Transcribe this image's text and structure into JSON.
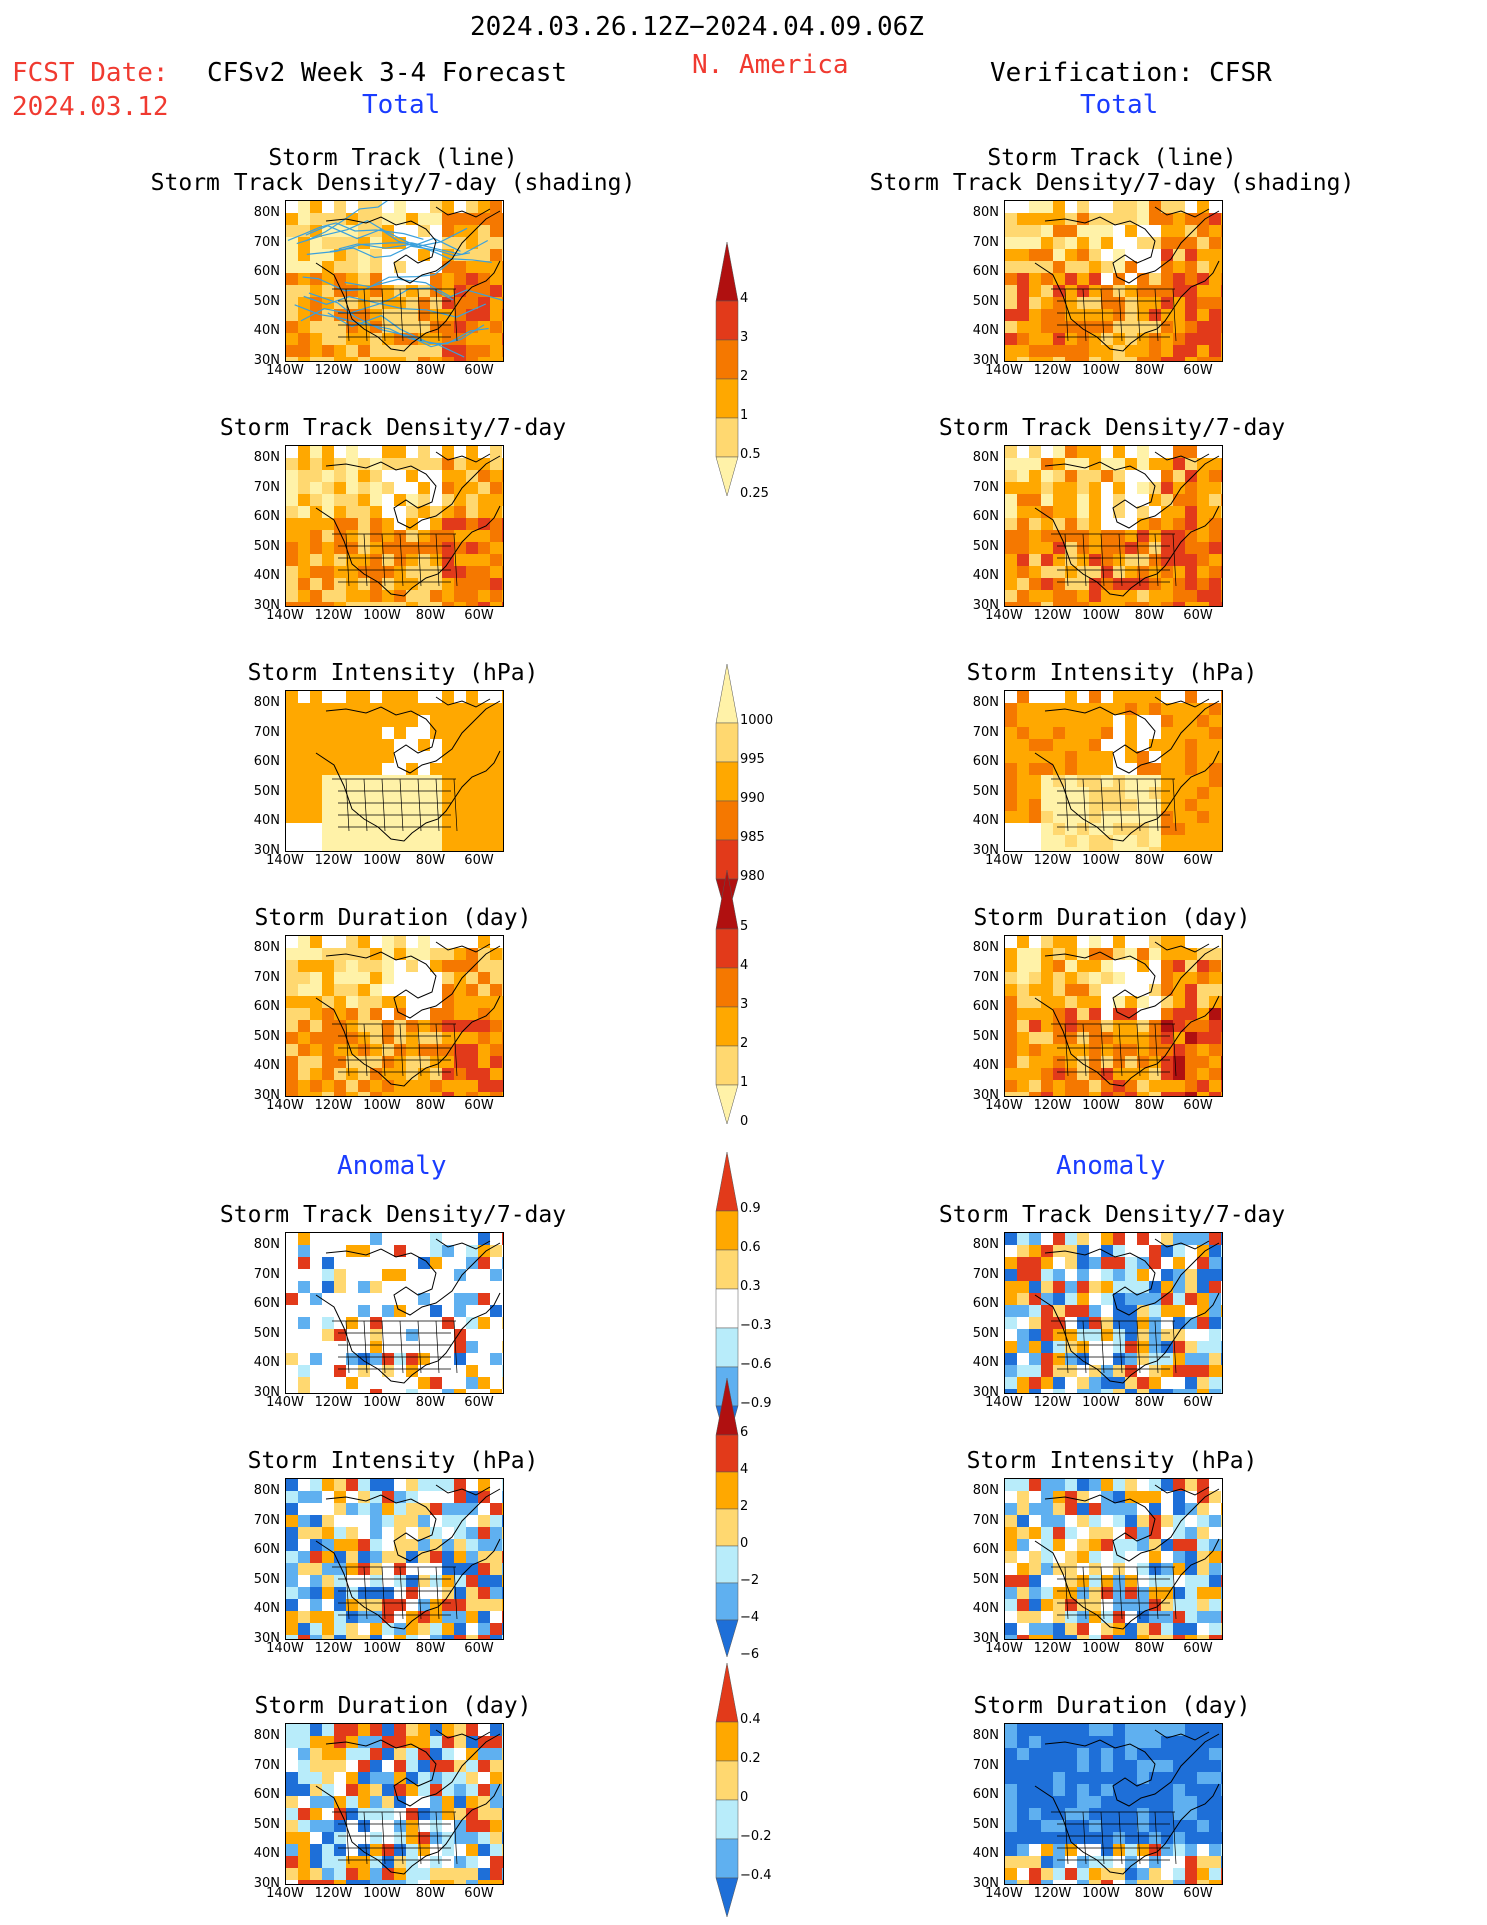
{
  "header": {
    "date_range": "2024.03.26.12Z−2024.04.09.06Z",
    "fcst_label": "FCST Date:",
    "fcst_date": "2024.03.12",
    "model_title": "CFSv2 Week 3-4 Forecast",
    "region": "N. America",
    "verification": "Verification: CFSR"
  },
  "sections": {
    "total_left": "Total",
    "total_right": "Total",
    "anomaly_left": "Anomaly",
    "anomaly_right": "Anomaly"
  },
  "panel_titles": {
    "track_line": "Storm Track (line)",
    "track_shading": "Storm Track Density/7-day (shading)",
    "density": "Storm Track Density/7-day",
    "intensity": "Storm Intensity (hPa)",
    "duration": "Storm Duration (day)"
  },
  "axes": {
    "lat_labels": [
      "80N",
      "70N",
      "60N",
      "50N",
      "40N",
      "30N"
    ],
    "lon_labels": [
      "140W",
      "120W",
      "100W",
      "80W",
      "60W"
    ]
  },
  "colorbars": {
    "density_total": [
      "4",
      "3",
      "2",
      "1",
      "0.5",
      "0.25"
    ],
    "intensity_total": [
      "1000",
      "995",
      "990",
      "985",
      "980"
    ],
    "duration_total": [
      "5",
      "4",
      "3",
      "2",
      "1",
      "0"
    ],
    "density_anom": [
      "0.9",
      "0.6",
      "0.3",
      "−0.3",
      "−0.6",
      "−0.9"
    ],
    "intensity_anom": [
      "6",
      "4",
      "2",
      "0",
      "−2",
      "−4",
      "−6"
    ],
    "duration_anom": [
      "0.4",
      "0.2",
      "0",
      "−0.2",
      "−0.4"
    ]
  },
  "colors": {
    "pale": "#fff2a8",
    "light": "#ffd870",
    "orange": "#ffa800",
    "dkorange": "#f57800",
    "red": "#e23a1a",
    "dkred": "#b01010",
    "ltblue": "#b8ecfa",
    "blue": "#5fb0f0",
    "dkblue": "#1e6fd8",
    "track": "#3aa0dc"
  }
}
